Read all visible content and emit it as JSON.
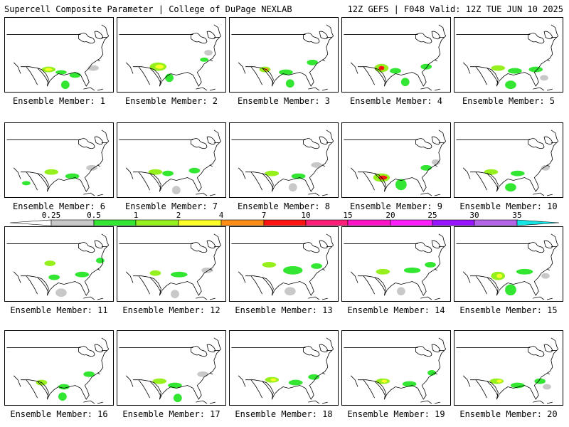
{
  "header": {
    "title": "Supercell Composite Parameter | College of DuPage NEXLAB",
    "valid": "12Z GEFS | F048 Valid: 12Z TUE JUN 10 2025"
  },
  "panels": [
    {
      "label": "Ensemble Member: 1"
    },
    {
      "label": "Ensemble Member: 2"
    },
    {
      "label": "Ensemble Member: 3"
    },
    {
      "label": "Ensemble Member: 4"
    },
    {
      "label": "Ensemble Member: 5"
    },
    {
      "label": "Ensemble Member: 6"
    },
    {
      "label": "Ensemble Member: 7"
    },
    {
      "label": "Ensemble Member: 8"
    },
    {
      "label": "Ensemble Member: 9"
    },
    {
      "label": "Ensemble Member: 10"
    },
    {
      "label": "Ensemble Member: 11"
    },
    {
      "label": "Ensemble Member: 12"
    },
    {
      "label": "Ensemble Member: 13"
    },
    {
      "label": "Ensemble Member: 14"
    },
    {
      "label": "Ensemble Member: 15"
    },
    {
      "label": "Ensemble Member: 16"
    },
    {
      "label": "Ensemble Member: 17"
    },
    {
      "label": "Ensemble Member: 18"
    },
    {
      "label": "Ensemble Member: 19"
    },
    {
      "label": "Ensemble Member: 20"
    }
  ],
  "legend": {
    "ticks": [
      "0.25",
      "0.5",
      "1",
      "2",
      "4",
      "7",
      "10",
      "15",
      "20",
      "25",
      "30",
      "35"
    ],
    "colors": [
      "#c8c8c8",
      "#32e632",
      "#96f01e",
      "#ffff28",
      "#ff8c14",
      "#ff1414",
      "#ff1e78",
      "#ff14c8",
      "#ff1eff",
      "#9614ff",
      "#b464e6",
      "#14e6e6"
    ]
  }
}
